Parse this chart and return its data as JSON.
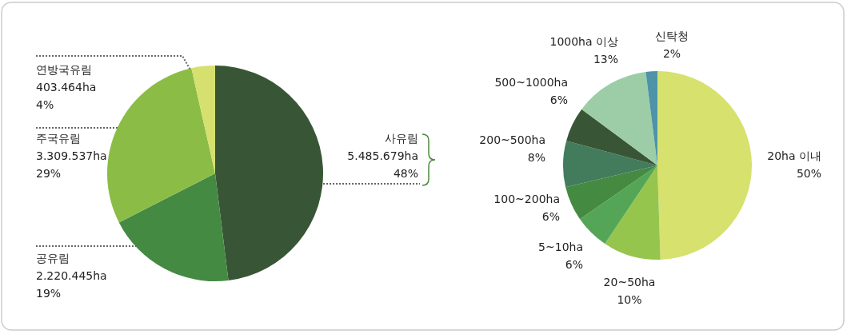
{
  "chart_data": [
    {
      "type": "pie",
      "categories": [
        "사유림",
        "공유림",
        "주국유림",
        "연방국유림"
      ],
      "values": [
        5485679,
        2220445,
        3309537,
        403464
      ],
      "value_labels": [
        "5.485.679ha\n48%",
        "2.220.445ha\n19%",
        "3.309.537ha\n29%",
        "403.464ha\n4%"
      ],
      "colors": [
        "#385635",
        "#448a43",
        "#8bbd46",
        "#d6e06e"
      ]
    },
    {
      "type": "pie",
      "categories": [
        "20ha 이내",
        "20~50ha",
        "5~10ha",
        "100~200ha",
        "200~500ha",
        "500~1000ha",
        "1000ha 이상",
        "신탁청"
      ],
      "values": [
        50,
        10,
        6,
        6,
        8,
        6,
        13,
        2
      ],
      "value_labels": [
        "50%",
        "10%",
        "6%",
        "6%",
        "8%",
        "6%",
        "13%",
        "2%"
      ],
      "colors": [
        "#d7e16e",
        "#96c54e",
        "#54a656",
        "#458a41",
        "#427c5c",
        "#385635",
        "#9dcda6",
        "#4e93a8"
      ]
    }
  ]
}
